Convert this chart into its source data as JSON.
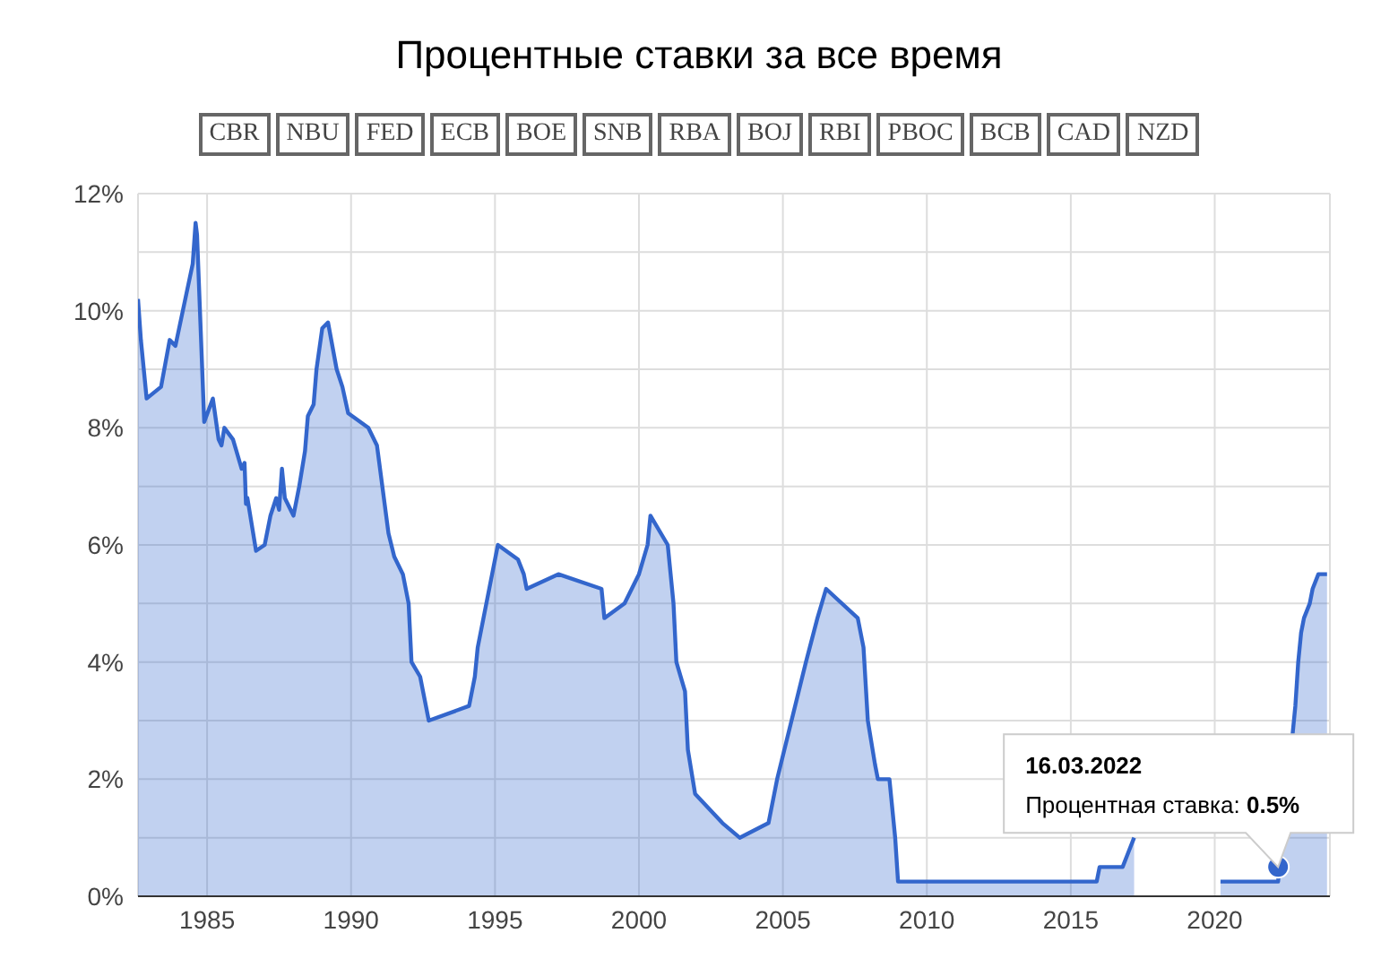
{
  "chart_data": {
    "type": "area",
    "title": "Процентные ставки за все время",
    "annotations": [
      "CBR",
      "NBU",
      "FED",
      "ECB",
      "BOE",
      "SNB",
      "RBA",
      "BOJ",
      "RBI",
      "PBOC",
      "BCB",
      "CAD",
      "NZD",
      {
        "text": "16.03.2022\nПроцентная ставка: 0.5%",
        "x": 2022.2,
        "y": 0.5
      }
    ],
    "x": [
      1982.6,
      1982.7,
      1982.9,
      1983.4,
      1983.7,
      1983.9,
      1984.5,
      1984.6,
      1984.65,
      1984.9,
      1985.2,
      1985.4,
      1985.5,
      1985.6,
      1985.9,
      1986.2,
      1986.3,
      1986.35,
      1986.4,
      1986.7,
      1987.0,
      1987.2,
      1987.4,
      1987.5,
      1987.6,
      1987.7,
      1988.0,
      1988.2,
      1988.4,
      1988.5,
      1988.7,
      1988.8,
      1989.0,
      1989.2,
      1989.5,
      1989.7,
      1989.9,
      1990.6,
      1990.9,
      1991.3,
      1991.5,
      1991.8,
      1992.0,
      1992.1,
      1992.4,
      1992.7,
      1994.1,
      1994.3,
      1994.4,
      1994.6,
      1994.9,
      1995.1,
      1995.8,
      1996.0,
      1996.1,
      1997.2,
      1998.7,
      1998.8,
      1999.5,
      2000.0,
      2000.3,
      2000.4,
      2001.0,
      2001.2,
      2001.3,
      2001.6,
      2001.7,
      2001.95,
      2002.9,
      2003.5,
      2004.5,
      2004.8,
      2005.3,
      2005.8,
      2006.2,
      2006.5,
      2007.6,
      2007.8,
      2007.95,
      2008.2,
      2008.3,
      2008.7,
      2008.9,
      2009.0,
      2015.9,
      2016.0,
      2016.8,
      2017.0,
      2017.2,
      2017.5,
      2020.2,
      2022.2,
      2022.8,
      2022.9,
      2023.0,
      2023.1,
      2023.3,
      2023.4,
      2023.6,
      2023.9
    ],
    "series": [
      {
        "color": "#3366cc",
        "values": [
          10.2,
          9.5,
          8.5,
          8.7,
          9.5,
          9.4,
          10.8,
          11.5,
          11.3,
          8.1,
          8.5,
          7.8,
          7.7,
          8.0,
          7.8,
          7.3,
          7.4,
          6.7,
          6.8,
          5.9,
          6.0,
          6.5,
          6.8,
          6.6,
          7.3,
          6.8,
          6.5,
          7.0,
          7.6,
          8.2,
          8.4,
          9.0,
          9.7,
          9.8,
          9.0,
          8.7,
          8.25,
          8.0,
          7.7,
          6.2,
          5.8,
          5.5,
          5.0,
          4.0,
          3.75,
          3.0,
          3.25,
          3.75,
          4.25,
          4.75,
          5.5,
          6.0,
          5.75,
          5.5,
          5.25,
          5.5,
          5.25,
          4.75,
          5.0,
          5.5,
          6.0,
          6.5,
          6.0,
          5.0,
          4.0,
          3.5,
          2.5,
          1.75,
          1.25,
          1.0,
          1.25,
          2.0,
          3.0,
          4.0,
          4.75,
          5.25,
          4.75,
          4.25,
          3.0,
          2.25,
          2.0,
          2.0,
          1.0,
          0.25,
          0.25,
          0.5,
          0.5,
          0.75,
          1.0,
          null,
          0.25,
          0.25,
          3.25,
          4.0,
          4.5,
          4.75,
          5.0,
          5.25,
          5.5,
          5.5
        ]
      }
    ],
    "xlim": [
      1982.6,
      2024
    ],
    "xticks": [
      1985,
      1990,
      1995,
      2000,
      2005,
      2010,
      2015,
      2020
    ],
    "ylim": [
      0,
      12
    ],
    "yticks": [
      {
        "value": 0,
        "label": "0%"
      },
      {
        "value": 1,
        "label": null
      },
      {
        "value": 2,
        "label": "2%"
      },
      {
        "value": 3,
        "label": null
      },
      {
        "value": 4,
        "label": "4%"
      },
      {
        "value": 5,
        "label": null
      },
      {
        "value": 6,
        "label": "6%"
      },
      {
        "value": 7,
        "label": null
      },
      {
        "value": 8,
        "label": "8%"
      },
      {
        "value": 9,
        "label": null
      },
      {
        "value": 10,
        "label": "10%"
      },
      {
        "value": 11,
        "label": null
      },
      {
        "value": 12,
        "label": "12%"
      }
    ],
    "grid": true,
    "marker": "none",
    "line_style": "solid"
  }
}
